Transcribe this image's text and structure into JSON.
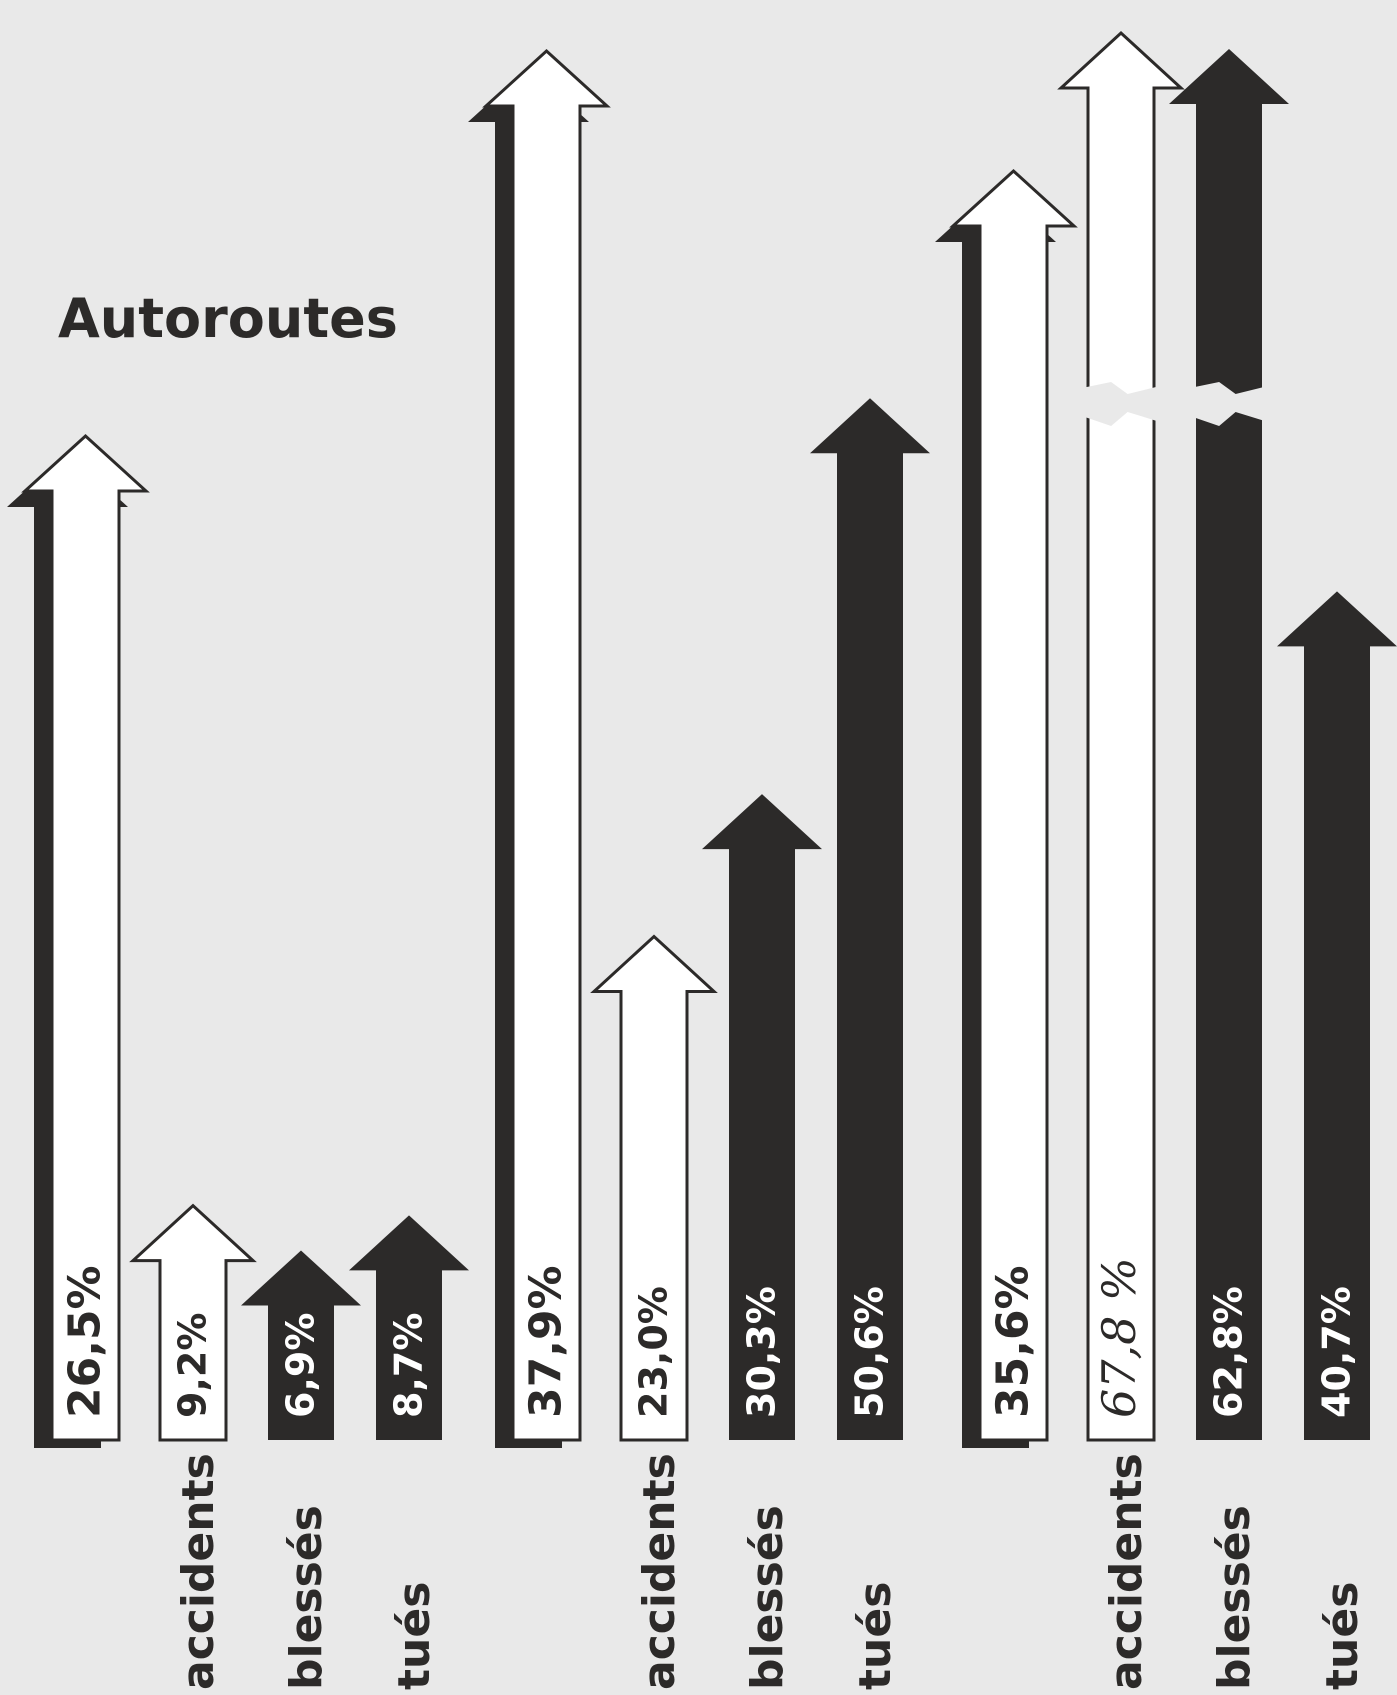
{
  "chart_data": {
    "type": "bar",
    "title": "Autoroutes",
    "groups": [
      {
        "shadow_bar": {
          "value": 26.5,
          "label": "26,5%"
        },
        "bars": [
          {
            "category": "accidents",
            "value": 9.2,
            "label": "9,2%",
            "fill": "white"
          },
          {
            "category": "blessés",
            "value": 6.9,
            "label": "6,9%",
            "fill": "dark"
          },
          {
            "category": "tués",
            "value": 8.7,
            "label": "8,7%",
            "fill": "dark"
          }
        ]
      },
      {
        "shadow_bar": {
          "value": 37.9,
          "label": "37,9%"
        },
        "bars": [
          {
            "category": "accidents",
            "value": 23.0,
            "label": "23,0%",
            "fill": "white"
          },
          {
            "category": "blessés",
            "value": 30.3,
            "label": "30,3%",
            "fill": "dark"
          },
          {
            "category": "tués",
            "value": 50.6,
            "label": "50,6%",
            "fill": "dark"
          }
        ]
      },
      {
        "shadow_bar": {
          "value": 35.6,
          "label": "35,6%"
        },
        "bars": [
          {
            "category": "accidents",
            "value": 67.8,
            "label": "67,8 %",
            "fill": "white",
            "broken_axis": true,
            "handwritten": true
          },
          {
            "category": "blessés",
            "value": 62.8,
            "label": "62,8%",
            "fill": "dark",
            "broken_axis": true
          },
          {
            "category": "tués",
            "value": 40.7,
            "label": "40,7%",
            "fill": "dark"
          }
        ]
      }
    ],
    "colors": {
      "dark": "#2c2a29",
      "white": "#ffffff",
      "background": "#e9e9e9"
    }
  }
}
